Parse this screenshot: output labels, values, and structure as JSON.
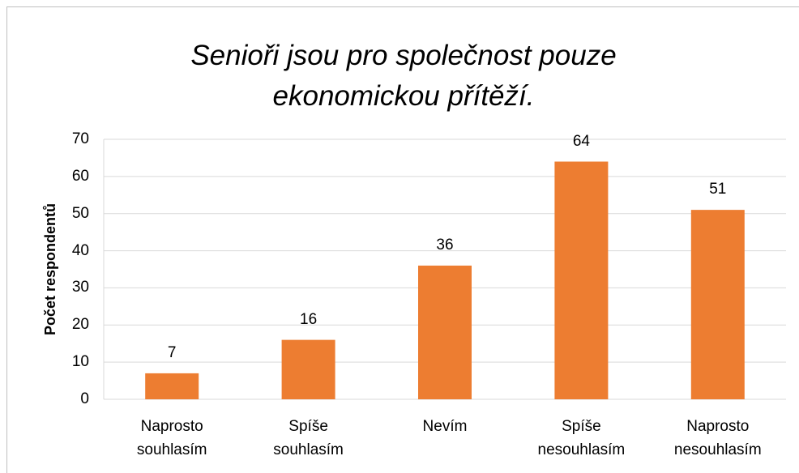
{
  "chart_data": {
    "type": "bar",
    "title": "Senioři jsou pro společnost pouze ekonomickou přítěží.",
    "y_label": "Počet respondentů",
    "categories": [
      "Naprosto souhlasím",
      "Spíše souhlasím",
      "Nevím",
      "Spíše nesouhlasím",
      "Naprosto nesouhlasím"
    ],
    "values": [
      7,
      16,
      36,
      64,
      51
    ],
    "color": "#ed7d31",
    "ylim": [
      0,
      70
    ],
    "yticks": [
      0,
      10,
      20,
      30,
      40,
      50,
      60,
      70
    ],
    "grid": true
  }
}
